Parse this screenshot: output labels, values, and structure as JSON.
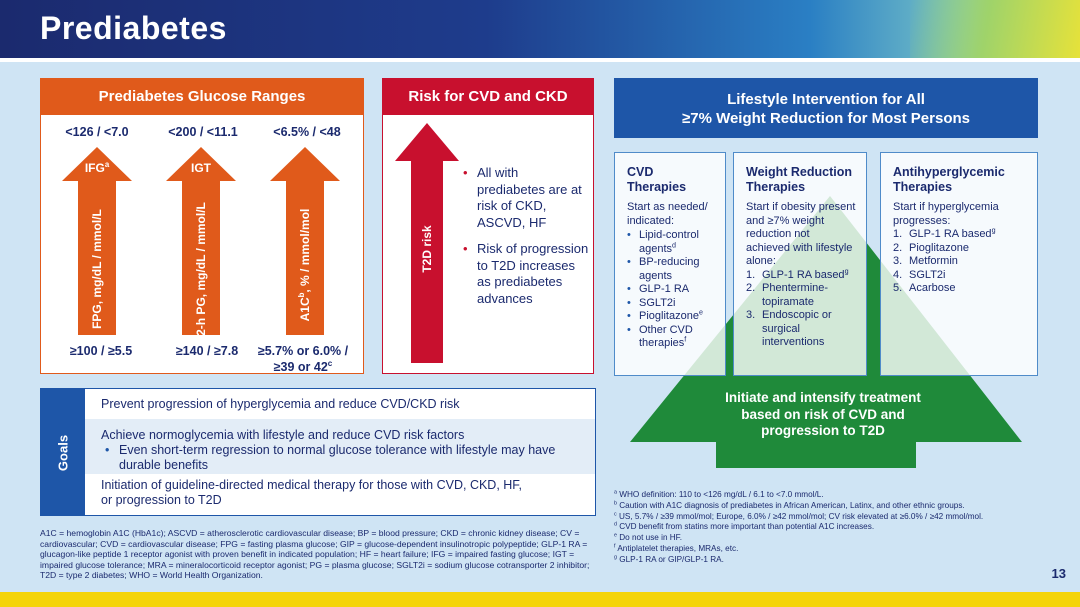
{
  "header": {
    "title": "Prediabetes"
  },
  "glucose": {
    "title": "Prediabetes Glucose Ranges",
    "columns": [
      {
        "top": "<126 / <7.0",
        "label": "IFG",
        "label_sup": "a",
        "axis": "FPG, mg/dL / mmol/L",
        "axis_sup": "",
        "bottom": "≥100 / ≥5.5"
      },
      {
        "top": "<200 / <11.1",
        "label": "IGT",
        "label_sup": "",
        "axis": "2-h PG, mg/dL / mmol/L",
        "axis_sup": "",
        "bottom": "≥140 / ≥7.8"
      },
      {
        "top": "<6.5% / <48",
        "label": "",
        "label_sup": "",
        "axis": "A1C",
        "axis_sup": "b",
        "axis_rest": ", % / mmol/mol",
        "bottom": "≥5.7% or 6.0% /",
        "bottom2": "≥39 or 42",
        "bottom2_sup": "c"
      }
    ]
  },
  "cvd": {
    "title": "Risk for CVD and CKD",
    "arrow_label": "T2D risk",
    "bullets": [
      "All with prediabetes are at risk of CKD, ASCVD, HF",
      "Risk of progression to T2D increases as prediabetes advances"
    ]
  },
  "lifestyle": {
    "title_line1": "Lifestyle Intervention for All",
    "title_line2": "≥7% Weight Reduction for Most Persons",
    "pyramid_text": "Initiate and intensify treatment based on risk of CVD and progression to T2D",
    "cvd_box": {
      "title": "CVD Therapies",
      "intro": "Start as needed/ indicated:",
      "items": [
        {
          "text": "Lipid-control agents",
          "sup": "d"
        },
        {
          "text": "BP-reducing agents",
          "sup": ""
        },
        {
          "text": "GLP-1 RA",
          "sup": ""
        },
        {
          "text": "SGLT2i",
          "sup": ""
        },
        {
          "text": "Pioglitazone",
          "sup": "e"
        },
        {
          "text": "Other CVD therapies",
          "sup": "f"
        }
      ]
    },
    "weight_box": {
      "title": "Weight Reduction Therapies",
      "intro": "Start if obesity present and ≥7% weight reduction not achieved with lifestyle alone:",
      "items": [
        {
          "num": "1.",
          "text": "GLP-1 RA based",
          "sup": "g"
        },
        {
          "num": "2.",
          "text": "Phentermine-topiramate",
          "sup": ""
        },
        {
          "num": "3.",
          "text": "Endoscopic or surgical interventions",
          "sup": ""
        }
      ]
    },
    "anti_box": {
      "title": "Antihyperglycemic Therapies",
      "intro": "Start if hyperglycemia progresses:",
      "items": [
        {
          "num": "1.",
          "text": "GLP-1 RA based",
          "sup": "g"
        },
        {
          "num": "2.",
          "text": "Pioglitazone",
          "sup": ""
        },
        {
          "num": "3.",
          "text": "Metformin",
          "sup": ""
        },
        {
          "num": "4.",
          "text": "SGLT2i",
          "sup": ""
        },
        {
          "num": "5.",
          "text": "Acarbose",
          "sup": ""
        }
      ]
    }
  },
  "goals": {
    "label": "Goals",
    "row1": "Prevent progression of hyperglycemia and reduce CVD/CKD risk",
    "row2": "Achieve normoglycemia with lifestyle and reduce CVD risk factors",
    "row2_sub": "Even short-term regression to normal glucose tolerance with lifestyle may have durable benefits",
    "row3": "Initiation of guideline-directed medical therapy for those with CVD, CKD, HF, or progression to T2D"
  },
  "abbreviations": "A1C = hemoglobin A1C (HbA1c); ASCVD = atherosclerotic cardiovascular disease; BP = blood pressure; CKD = chronic kidney disease; CV = cardiovascular; CVD = cardiovascular disease; FPG = fasting plasma glucose; GIP = glucose-dependent insulinotropic polypeptide; GLP-1 RA = glucagon-like peptide 1 receptor agonist with proven benefit in indicated population; HF = heart failure; IFG = impaired fasting glucose; IGT = impaired glucose tolerance; MRA = mineralocorticoid receptor agonist; PG = plasma glucose; SGLT2i = sodium glucose cotransporter 2 inhibitor; T2D = type 2 diabetes; WHO = World Health Organization.",
  "footnotes": [
    {
      "mark": "a",
      "text": "WHO definition: 110 to <126 mg/dL / 6.1 to <7.0 mmol/L."
    },
    {
      "mark": "b",
      "text": "Caution with A1C diagnosis of prediabetes in African American, Latinx, and other ethnic groups."
    },
    {
      "mark": "c",
      "text": "US, 5.7% / ≥39 mmol/mol; Europe, 6.0% / ≥42 mmol/mol; CV risk elevated at ≥6.0% / ≥42 mmol/mol."
    },
    {
      "mark": "d",
      "text": "CVD benefit from statins more important than potential A1C increases."
    },
    {
      "mark": "e",
      "text": "Do not use in HF."
    },
    {
      "mark": "f",
      "text": "Antiplatelet therapies, MRAs, etc."
    },
    {
      "mark": "g",
      "text": "GLP-1 RA or GIP/GLP-1 RA."
    }
  ],
  "page_number": "13",
  "colors": {
    "orange": "#e05a1b",
    "red": "#c8102e",
    "blue": "#1e56a8",
    "green": "#1f8a3a",
    "navy": "#1b2a6e"
  }
}
